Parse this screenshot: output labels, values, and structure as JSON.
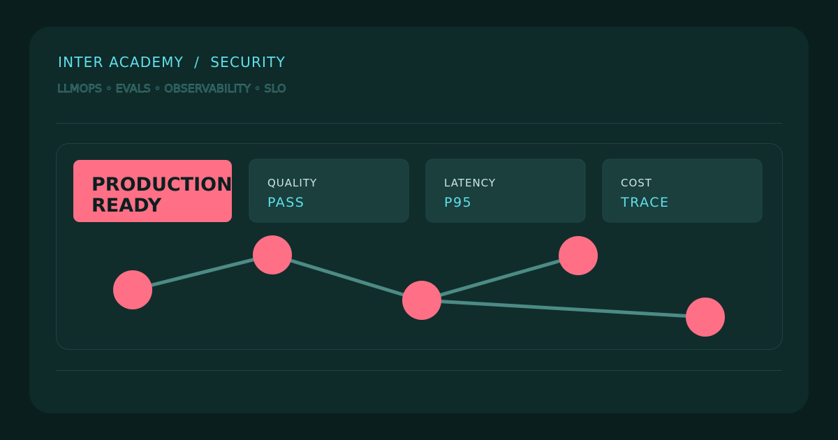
{
  "header": {
    "title": "INTER ACADEMY  /  SECURITY",
    "subtitle": "LLMOPS • EVALS • OBSERVABILITY • SLO"
  },
  "badge": {
    "lines": [
      "PRODUCTION",
      "READY"
    ]
  },
  "metrics": [
    {
      "label": "QUALITY",
      "value": "PASS"
    },
    {
      "label": "LATENCY",
      "value": "P95"
    },
    {
      "label": "COST",
      "value": "TRACE"
    }
  ]
}
